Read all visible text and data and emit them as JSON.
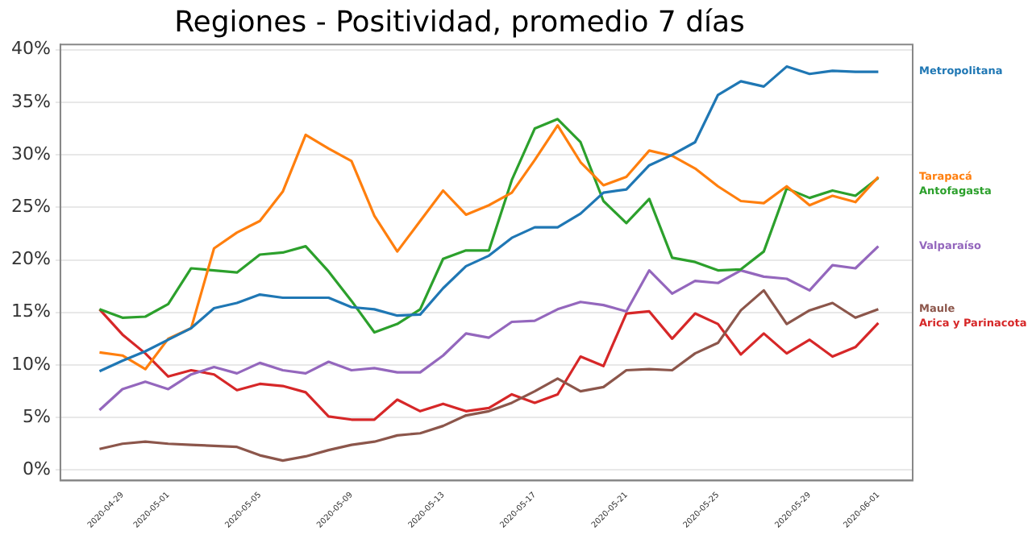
{
  "chart_data": {
    "type": "line",
    "title": "Regiones - Positividad, promedio 7 días",
    "x": [
      "2020-04-28",
      "2020-04-29",
      "2020-04-30",
      "2020-05-01",
      "2020-05-02",
      "2020-05-03",
      "2020-05-04",
      "2020-05-05",
      "2020-05-06",
      "2020-05-07",
      "2020-05-08",
      "2020-05-09",
      "2020-05-10",
      "2020-05-11",
      "2020-05-12",
      "2020-05-13",
      "2020-05-14",
      "2020-05-15",
      "2020-05-16",
      "2020-05-17",
      "2020-05-18",
      "2020-05-19",
      "2020-05-20",
      "2020-05-21",
      "2020-05-22",
      "2020-05-23",
      "2020-05-24",
      "2020-05-25",
      "2020-05-26",
      "2020-05-27",
      "2020-05-28",
      "2020-05-29",
      "2020-05-30",
      "2020-05-31",
      "2020-06-01"
    ],
    "series": [
      {
        "name": "Metropolitana",
        "color": "#1f77b4",
        "values": [
          9.4,
          10.4,
          11.3,
          12.4,
          13.5,
          15.4,
          15.9,
          16.7,
          16.4,
          16.4,
          16.4,
          15.5,
          15.3,
          14.7,
          14.8,
          17.3,
          19.4,
          20.4,
          22.1,
          23.1,
          23.1,
          24.4,
          26.4,
          26.7,
          29.0,
          30.0,
          31.2,
          35.7,
          37.0,
          36.5,
          38.4,
          37.7,
          38.0,
          37.9,
          37.9
        ]
      },
      {
        "name": "Tarapacá",
        "color": "#ff7f0e",
        "values": [
          11.2,
          10.9,
          9.6,
          12.5,
          13.5,
          21.1,
          22.6,
          23.7,
          26.5,
          31.9,
          30.6,
          29.4,
          24.2,
          20.8,
          23.7,
          26.6,
          24.3,
          25.2,
          26.4,
          29.5,
          32.8,
          29.3,
          27.1,
          27.9,
          30.4,
          29.9,
          28.7,
          27.0,
          25.6,
          25.4,
          27.0,
          25.2,
          26.1,
          25.5,
          27.9
        ]
      },
      {
        "name": "Antofagasta",
        "color": "#2ca02c",
        "values": [
          15.3,
          14.5,
          14.6,
          15.8,
          19.2,
          19.0,
          18.8,
          20.5,
          20.7,
          21.3,
          18.9,
          16.1,
          13.1,
          13.9,
          15.3,
          20.1,
          20.9,
          20.9,
          27.6,
          32.5,
          33.4,
          31.2,
          25.6,
          23.5,
          25.8,
          20.2,
          19.8,
          19.0,
          19.1,
          20.8,
          26.8,
          25.9,
          26.6,
          26.1,
          27.8
        ]
      },
      {
        "name": "Valparaíso",
        "color": "#9467bd",
        "values": [
          5.7,
          7.7,
          8.4,
          7.7,
          9.1,
          9.8,
          9.2,
          10.2,
          9.5,
          9.2,
          10.3,
          9.5,
          9.7,
          9.3,
          9.3,
          10.9,
          13.0,
          12.6,
          14.1,
          14.2,
          15.3,
          16.0,
          15.7,
          15.1,
          19.0,
          16.8,
          18.0,
          17.8,
          19.0,
          18.4,
          18.2,
          17.1,
          19.5,
          19.2,
          21.3
        ]
      },
      {
        "name": "Maule",
        "color": "#8c564b",
        "values": [
          2.0,
          2.5,
          2.7,
          2.5,
          2.4,
          2.3,
          2.2,
          1.4,
          0.9,
          1.3,
          1.9,
          2.4,
          2.7,
          3.3,
          3.5,
          4.2,
          5.2,
          5.6,
          6.4,
          7.5,
          8.7,
          7.5,
          7.9,
          9.5,
          9.6,
          9.5,
          11.1,
          12.1,
          15.2,
          17.1,
          13.9,
          15.2,
          15.9,
          14.5,
          15.3
        ]
      },
      {
        "name": "Arica y Parinacota",
        "color": "#d62728",
        "values": [
          15.3,
          12.9,
          11.1,
          8.9,
          9.5,
          9.1,
          7.6,
          8.2,
          8.0,
          7.4,
          5.1,
          4.8,
          4.8,
          6.7,
          5.6,
          6.3,
          5.6,
          5.9,
          7.2,
          6.4,
          7.2,
          10.8,
          9.9,
          14.9,
          15.1,
          12.5,
          14.9,
          13.9,
          11.0,
          13.0,
          11.1,
          12.4,
          10.8,
          11.7,
          14.0
        ]
      }
    ],
    "xlim": [
      "2020-04-26T07:00",
      "2020-06-02T12:00"
    ],
    "xticks": [
      "2020-04-29",
      "2020-05-01",
      "2020-05-05",
      "2020-05-09",
      "2020-05-13",
      "2020-05-17",
      "2020-05-21",
      "2020-05-25",
      "2020-05-29",
      "2020-06-01"
    ],
    "ylim": [
      -1,
      40.5
    ],
    "yticks": [
      {
        "value": 0,
        "label": "0%"
      },
      {
        "value": 5,
        "label": "5%"
      },
      {
        "value": 10,
        "label": "10%"
      },
      {
        "value": 15,
        "label": "15%"
      },
      {
        "value": 20,
        "label": "20%"
      },
      {
        "value": 25,
        "label": "25%"
      },
      {
        "value": 30,
        "label": "30%"
      },
      {
        "value": 35,
        "label": "35%"
      },
      {
        "value": 40,
        "label": "40%"
      }
    ],
    "grid": "y",
    "legend": false,
    "marker": "none",
    "line_style": "solid"
  }
}
